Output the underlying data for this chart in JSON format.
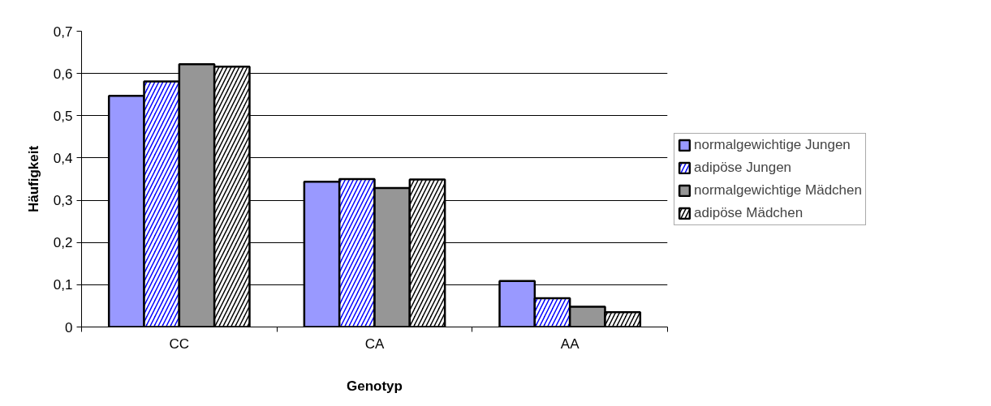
{
  "chart_data": {
    "type": "bar",
    "xlabel": "Genotyp",
    "ylabel": "Häufigkeit",
    "categories": [
      "CC",
      "CA",
      "AA"
    ],
    "series": [
      {
        "name": "normalgewichtige Jungen",
        "color": "#9999ff",
        "values": [
          0.547,
          0.344,
          0.109
        ]
      },
      {
        "name": "adipöse Jungen",
        "color": "#0000ff",
        "values": [
          0.581,
          0.35,
          0.068
        ]
      },
      {
        "name": "normalgewichtige Mädchen",
        "color": "#969696",
        "values": [
          0.622,
          0.329,
          0.048
        ]
      },
      {
        "name": "adipöse Mädchen",
        "color": "#000000",
        "values": [
          0.616,
          0.349,
          0.035
        ]
      }
    ],
    "ylim": [
      0,
      0.7
    ],
    "yticks": [
      0,
      {
        "value": 0.1,
        "label": "0,1"
      },
      {
        "value": 0.2,
        "label": "0,2"
      },
      {
        "value": 0.3,
        "label": "0,3"
      },
      {
        "value": 0.4,
        "label": "0,4"
      },
      {
        "value": 0.5,
        "label": "0,5"
      },
      {
        "value": 0.6,
        "label": "0,6"
      },
      {
        "value": 0.7,
        "label": "0,7"
      }
    ],
    "grid": "y",
    "legend": "right"
  }
}
